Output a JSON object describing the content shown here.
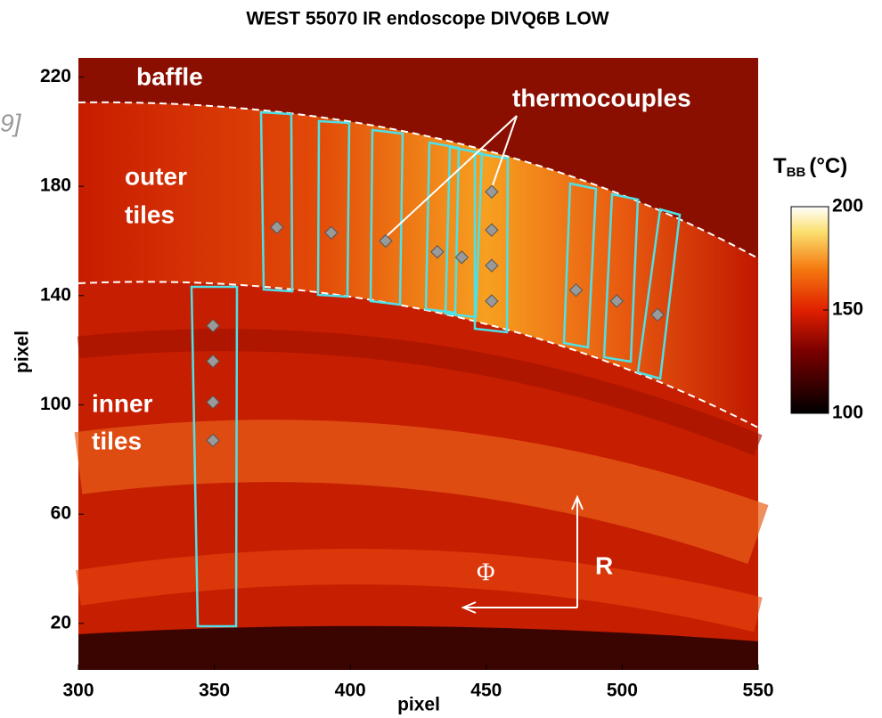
{
  "chart_data": {
    "type": "image",
    "title": "WEST 55070 IR endoscope DIVQ6B LOW",
    "xlabel": "pixel",
    "ylabel": "pixel",
    "xlim": [
      300,
      550
    ],
    "xticks": [
      300,
      350,
      400,
      450,
      500,
      550
    ],
    "ylim": [
      3,
      227
    ],
    "yticks": [
      20,
      60,
      100,
      140,
      180,
      220
    ],
    "annotations": [
      "baffle",
      "thermocouples",
      "outer",
      "tiles",
      "inner",
      "tiles",
      "Φ",
      "R",
      "9]"
    ],
    "colorbar": {
      "label": [
        "T",
        "BB",
        "(°C)"
      ],
      "clim": [
        100,
        200
      ],
      "ticks": [
        100,
        150,
        200
      ]
    },
    "points": {
      "color": "#9a9a9a",
      "x": [
        373,
        393,
        413,
        432,
        441,
        452,
        452,
        452,
        452,
        483,
        498,
        513,
        349.5,
        349.5,
        349.5,
        349.5
      ],
      "y": [
        165,
        163,
        160,
        156,
        154,
        178,
        164,
        151,
        138,
        142,
        138,
        133,
        129,
        116,
        101,
        87
      ]
    }
  }
}
